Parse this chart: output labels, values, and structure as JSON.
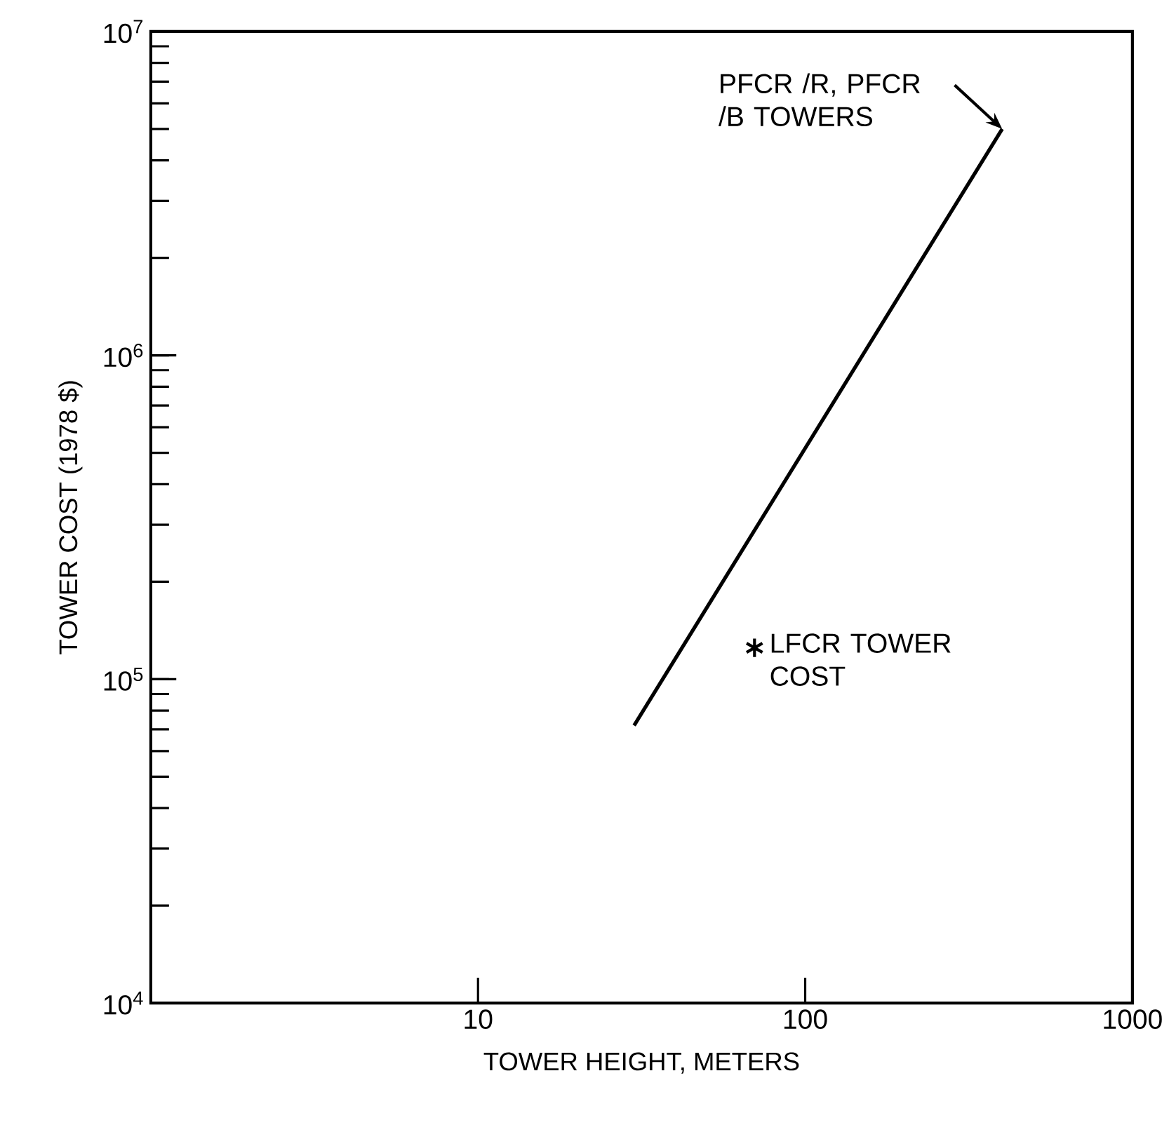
{
  "chart_data": {
    "type": "line",
    "xlabel": "TOWER HEIGHT, METERS",
    "ylabel": "TOWER COST (1978 $)",
    "log": "xy",
    "xlim": [
      1,
      1000
    ],
    "ylim": [
      10000,
      10000000
    ],
    "xticks": [
      10,
      100,
      1000
    ],
    "yticks": [
      {
        "value": 10000,
        "label": "10$^{4}$"
      },
      {
        "value": 100000,
        "label": "10$^{5}$"
      },
      {
        "value": 1000000,
        "label": "10$^{6}$"
      },
      {
        "value": 10000000,
        "label": "10$^{7}$"
      }
    ],
    "grid": false,
    "series": [
      {
        "color": "#000000",
        "x": [
          30,
          400
        ],
        "values": [
          72000,
          5000000
        ]
      },
      {
        "type": "scatter",
        "color": "#000000",
        "marker": "cross",
        "x": [
          70
        ],
        "values": [
          125000
        ]
      }
    ],
    "annotations": [
      {
        "text": "PFCR /R, PFCR /B TOWERS",
        "x": 400,
        "y": 5000000
      },
      {
        "text": "LFCR TOWER COST",
        "x": 70,
        "y": 125000
      }
    ]
  }
}
